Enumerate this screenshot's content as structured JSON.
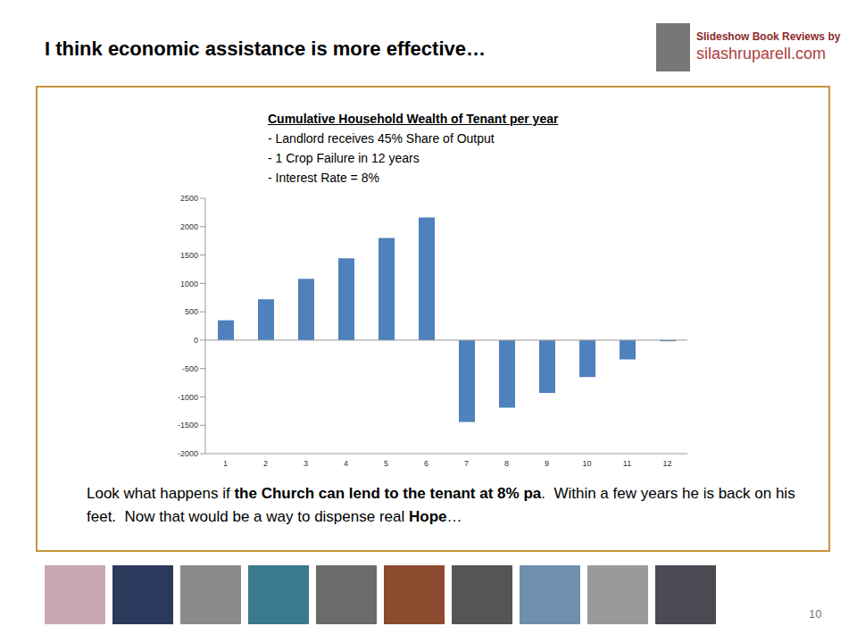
{
  "slide": {
    "heading": "I think economic assistance is more effective…",
    "brand": [
      "Slideshow Book Reviews by",
      "silashruparell.com"
    ],
    "caption": [
      "Look what happens if ",
      "the Church can lend to the tenant at 8% pa",
      ".  Within a few years he is back on his feet.  Now that would be a way to dispense real ",
      "Hope",
      "…"
    ],
    "page": "10"
  },
  "chart_data": {
    "type": "bar",
    "title": "Cumulative Household Wealth of Tenant per year",
    "subtitle": [
      "- Landlord receives 45% Share of Output",
      "- 1 Crop Failure in 12 years",
      "- Interest Rate = 8%"
    ],
    "categories": [
      "1",
      "2",
      "3",
      "4",
      "5",
      "6",
      "7",
      "8",
      "9",
      "10",
      "11",
      "12"
    ],
    "values": [
      350,
      720,
      1080,
      1440,
      1800,
      2160,
      -1440,
      -1190,
      -930,
      -650,
      -340,
      -20
    ],
    "color": "#4f81bd",
    "ylim": [
      -2000,
      2500
    ],
    "yticks": [
      -2000,
      -1500,
      -1000,
      -500,
      0,
      500,
      1000,
      1500,
      2000,
      2500
    ],
    "grid": false
  }
}
